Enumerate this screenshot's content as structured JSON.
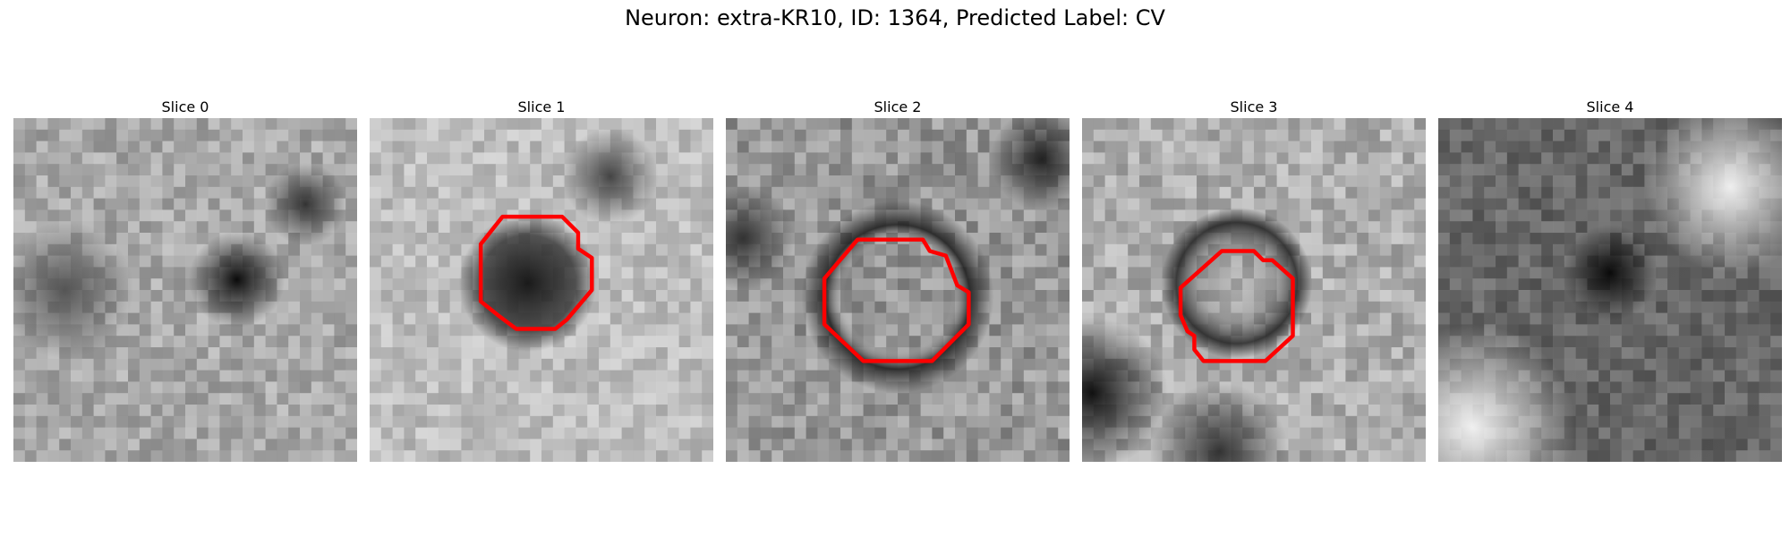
{
  "figure": {
    "title": "Neuron: extra-KR10, ID: 1364, Predicted Label: CV"
  },
  "panels": [
    {
      "title": "Slice 0",
      "has_contour": false
    },
    {
      "title": "Slice 1",
      "has_contour": true
    },
    {
      "title": "Slice 2",
      "has_contour": true
    },
    {
      "title": "Slice 3",
      "has_contour": true
    },
    {
      "title": "Slice 4",
      "has_contour": false
    }
  ],
  "colors": {
    "contour": "#ff0000",
    "background": "#ffffff"
  }
}
